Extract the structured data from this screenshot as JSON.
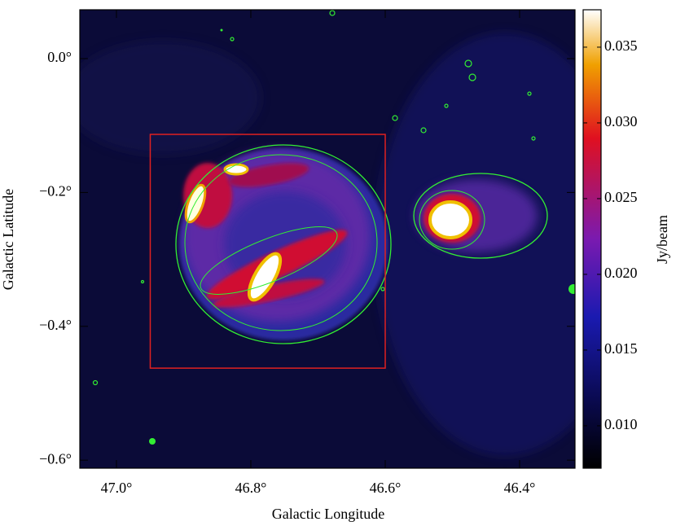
{
  "chart_data": {
    "type": "image",
    "xlabel": "Galactic Longitude",
    "ylabel": "Galactic Latitude",
    "colorbar_label": "Jy/beam",
    "xlim": [
      47.0545,
      46.3176
    ],
    "ylim": [
      -0.612,
      0.073
    ],
    "xticks": [
      {
        "value": 47.0,
        "label": "47.0°"
      },
      {
        "value": 46.8,
        "label": "46.8°"
      },
      {
        "value": 46.6,
        "label": "46.6°"
      },
      {
        "value": 46.4,
        "label": "46.4°"
      }
    ],
    "yticks": [
      {
        "value": 0.0,
        "label": "0.0°"
      },
      {
        "value": -0.2,
        "label": "−0.2°"
      },
      {
        "value": -0.4,
        "label": "−0.4°"
      },
      {
        "value": -0.6,
        "label": "−0.6°"
      }
    ],
    "clim": [
      0.0072,
      0.03747
    ],
    "cticks": [
      {
        "value": 0.01,
        "label": "0.010"
      },
      0.015,
      {
        "value": 0.02,
        "label": "0.020"
      },
      0.025,
      {
        "value": 0.03,
        "label": "0.030"
      },
      0.035
    ],
    "region": {
      "lon": [
        46.9497,
        46.6
      ],
      "lat": [
        -0.1132,
        -0.4625
      ],
      "color": "#e02020"
    }
  }
}
